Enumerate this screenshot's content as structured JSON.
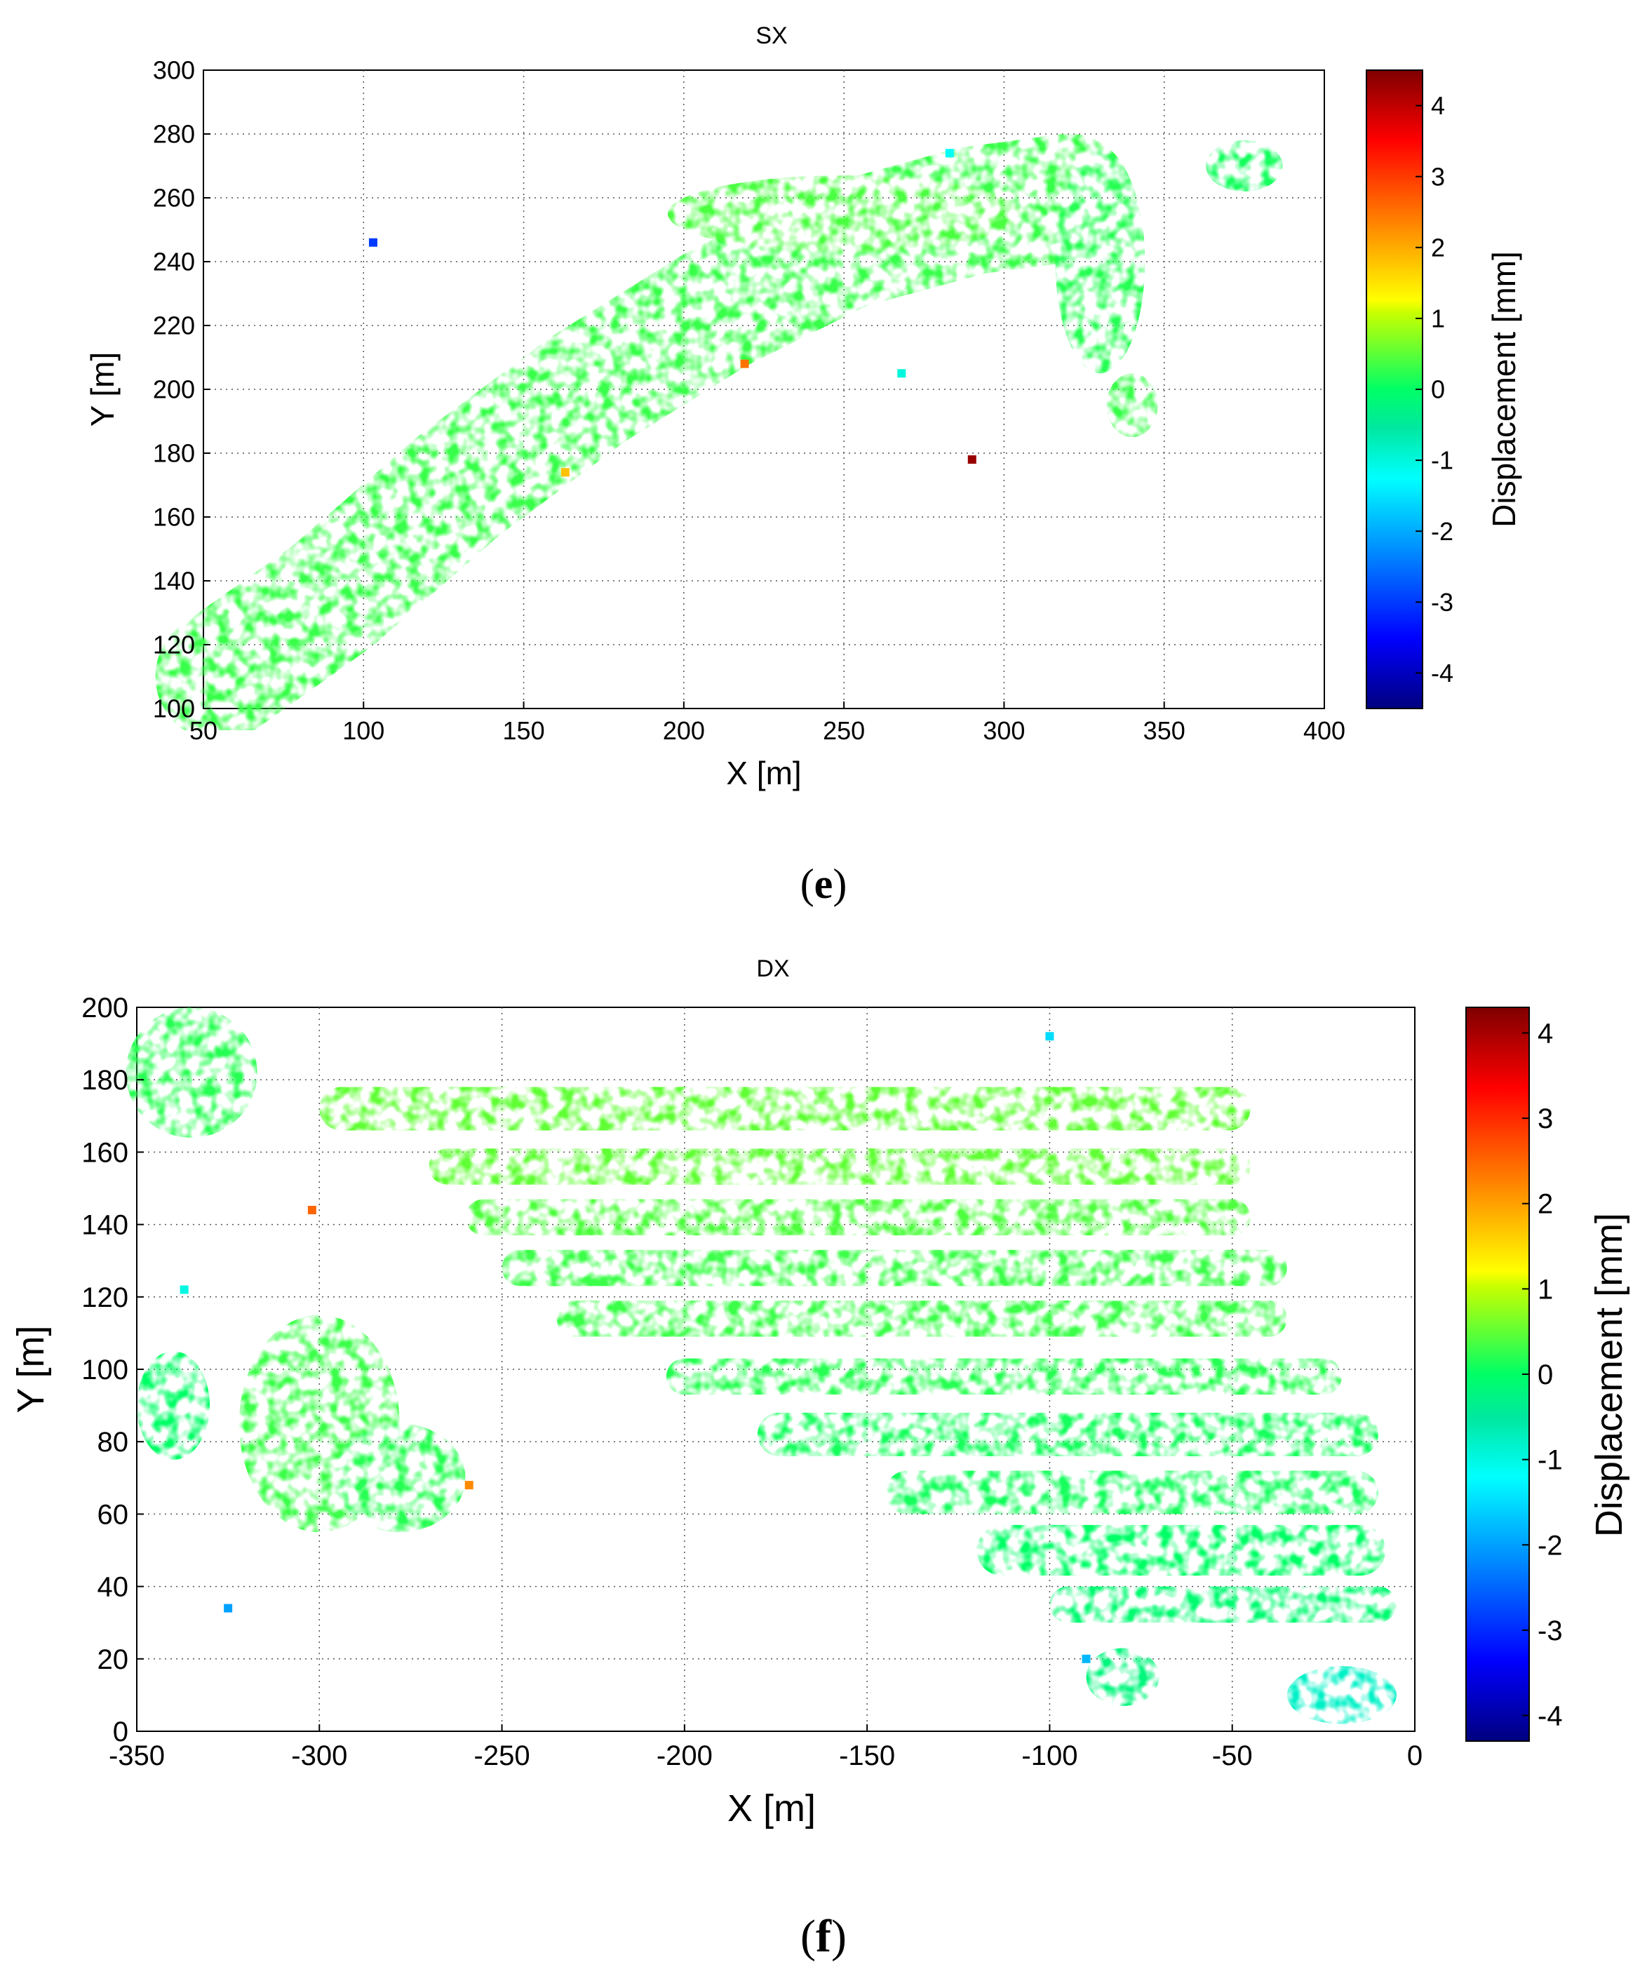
{
  "chart_data": [
    {
      "type": "heatmap",
      "panel_label": "e",
      "title": "SX",
      "xlabel": "X [m]",
      "ylabel": "Y [m]",
      "xlim": [
        50,
        400
      ],
      "ylim": [
        100,
        300
      ],
      "xticks": [
        50,
        100,
        150,
        200,
        250,
        300,
        350,
        400
      ],
      "yticks": [
        100,
        120,
        140,
        160,
        180,
        200,
        220,
        240,
        260,
        280,
        300
      ],
      "grid": true,
      "colorbar": {
        "label": "Displacement [mm]",
        "range": [
          -4.5,
          4.5
        ],
        "ticks": [
          -4,
          -3,
          -2,
          -1,
          0,
          1,
          2,
          3,
          4
        ]
      },
      "description_values_mm": "mostly between -0.5 and 0.8 (green), isolated outliers up to about +4.5 and down to about -3",
      "regions": [
        {
          "shape": "band",
          "cx": [
            55,
            90,
            130,
            170,
            210,
            250,
            290,
            320
          ],
          "cy": [
            110,
            135,
            170,
            200,
            225,
            245,
            256,
            260
          ],
          "width_m": 40,
          "value": 0.3
        },
        {
          "shape": "blob",
          "x": 250,
          "y": 255,
          "rx": 55,
          "ry": 12,
          "value": 0.4
        },
        {
          "shape": "blob",
          "x": 330,
          "y": 240,
          "rx": 14,
          "ry": 35,
          "value": 0.2
        },
        {
          "shape": "blob",
          "x": 340,
          "y": 195,
          "rx": 8,
          "ry": 10,
          "value": 0.3
        },
        {
          "shape": "blob",
          "x": 375,
          "y": 270,
          "rx": 12,
          "ry": 8,
          "value": 0.1
        }
      ],
      "outliers": [
        {
          "x": 290,
          "y": 178,
          "value": 4.3
        },
        {
          "x": 103,
          "y": 246,
          "value": -3.0
        },
        {
          "x": 283,
          "y": 274,
          "value": -1.2
        },
        {
          "x": 268,
          "y": 205,
          "value": -1.0
        },
        {
          "x": 219,
          "y": 208,
          "value": 2.5
        },
        {
          "x": 163,
          "y": 174,
          "value": 1.8
        }
      ]
    },
    {
      "type": "heatmap",
      "panel_label": "f",
      "title": "DX",
      "xlabel": "X [m]",
      "ylabel": "Y [m]",
      "xlim": [
        -350,
        0
      ],
      "ylim": [
        0,
        200
      ],
      "xticks": [
        -350,
        -300,
        -250,
        -200,
        -150,
        -100,
        -50,
        0
      ],
      "yticks": [
        0,
        20,
        40,
        60,
        80,
        100,
        120,
        140,
        160,
        180,
        200
      ],
      "grid": true,
      "colorbar": {
        "label": "Displacement [mm]",
        "range": [
          -4.3,
          4.3
        ],
        "ticks": [
          -4,
          -3,
          -2,
          -1,
          0,
          1,
          2,
          3,
          4
        ]
      },
      "description_values_mm": "mostly between -0.8 and 0.8 (green), isolated outliers up to about +2.5 and down to about -2",
      "regions": [
        {
          "shape": "blob",
          "x": -335,
          "y": 182,
          "rx": 18,
          "ry": 18,
          "value": 0.2
        },
        {
          "shape": "stripe",
          "x0": -300,
          "x1": -45,
          "y": 172,
          "h": 12,
          "value": 0.5
        },
        {
          "shape": "stripe",
          "x0": -270,
          "x1": -45,
          "y": 156,
          "h": 10,
          "value": 0.5
        },
        {
          "shape": "stripe",
          "x0": -260,
          "x1": -45,
          "y": 142,
          "h": 10,
          "value": 0.4
        },
        {
          "shape": "stripe",
          "x0": -250,
          "x1": -35,
          "y": 128,
          "h": 10,
          "value": 0.3
        },
        {
          "shape": "stripe",
          "x0": -235,
          "x1": -35,
          "y": 114,
          "h": 10,
          "value": 0.3
        },
        {
          "shape": "stripe",
          "x0": -205,
          "x1": -20,
          "y": 98,
          "h": 10,
          "value": 0.2
        },
        {
          "shape": "stripe",
          "x0": -180,
          "x1": -10,
          "y": 82,
          "h": 12,
          "value": 0.1
        },
        {
          "shape": "stripe",
          "x0": -145,
          "x1": -10,
          "y": 66,
          "h": 12,
          "value": 0.1
        },
        {
          "shape": "stripe",
          "x0": -120,
          "x1": -8,
          "y": 50,
          "h": 14,
          "value": 0.0
        },
        {
          "shape": "stripe",
          "x0": -100,
          "x1": -5,
          "y": 35,
          "h": 10,
          "value": -0.1
        },
        {
          "shape": "blob",
          "x": -300,
          "y": 85,
          "rx": 22,
          "ry": 30,
          "value": 0.3
        },
        {
          "shape": "blob",
          "x": -278,
          "y": 70,
          "rx": 18,
          "ry": 15,
          "value": 0.2
        },
        {
          "shape": "blob",
          "x": -340,
          "y": 90,
          "rx": 10,
          "ry": 15,
          "value": 0.0
        },
        {
          "shape": "blob",
          "x": -80,
          "y": 15,
          "rx": 10,
          "ry": 8,
          "value": -0.2
        },
        {
          "shape": "blob",
          "x": -20,
          "y": 10,
          "rx": 15,
          "ry": 8,
          "value": -0.8
        }
      ],
      "outliers": [
        {
          "x": -302,
          "y": 144,
          "value": 2.5
        },
        {
          "x": -259,
          "y": 68,
          "value": 2.2
        },
        {
          "x": -90,
          "y": 20,
          "value": -1.8
        },
        {
          "x": -325,
          "y": 34,
          "value": -2.0
        },
        {
          "x": -100,
          "y": 192,
          "value": -1.5
        },
        {
          "x": -337,
          "y": 122,
          "value": -1.0
        }
      ]
    }
  ]
}
